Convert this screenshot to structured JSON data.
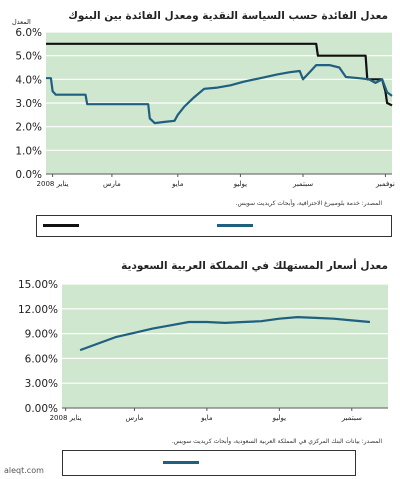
{
  "chart_data": [
    {
      "type": "line",
      "title": "معدل الفائدة حسب السياسة النقدية ومعدل الفائدة بين البنوك",
      "units_label": "المعدل",
      "ylim": [
        0,
        6
      ],
      "yticks": [
        "0.0%",
        "1.0%",
        "2.0%",
        "3.0%",
        "4.0%",
        "5.0%",
        "6.0%"
      ],
      "ytick_values": [
        0,
        1,
        2,
        3,
        4,
        5,
        6
      ],
      "x_range": [
        0,
        10.5
      ],
      "xticks": [
        {
          "x": 0.2,
          "label": "يناير 2008"
        },
        {
          "x": 2.0,
          "label": "مارس"
        },
        {
          "x": 4.0,
          "label": "مايو"
        },
        {
          "x": 5.9,
          "label": "يوليو"
        },
        {
          "x": 7.8,
          "label": "سبتمبر"
        },
        {
          "x": 10.3,
          "label": "نوفمبر"
        }
      ],
      "grid": true,
      "series": [
        {
          "color": "#111111",
          "points": [
            [
              0,
              5.5
            ],
            [
              7.8,
              5.5
            ],
            [
              8.2,
              5.5
            ],
            [
              8.25,
              5.0
            ],
            [
              9.7,
              5.0
            ],
            [
              9.75,
              4.0
            ],
            [
              10.2,
              4.0
            ],
            [
              10.3,
              3.5
            ],
            [
              10.35,
              3.0
            ],
            [
              10.5,
              2.9
            ]
          ]
        },
        {
          "color": "#1f5f7f",
          "points": [
            [
              0,
              4.05
            ],
            [
              0.15,
              4.05
            ],
            [
              0.2,
              3.5
            ],
            [
              0.3,
              3.35
            ],
            [
              0.5,
              3.35
            ],
            [
              1.2,
              3.35
            ],
            [
              1.25,
              2.95
            ],
            [
              2.5,
              2.95
            ],
            [
              3.1,
              2.95
            ],
            [
              3.15,
              2.35
            ],
            [
              3.3,
              2.15
            ],
            [
              3.6,
              2.2
            ],
            [
              3.9,
              2.25
            ],
            [
              4.0,
              2.5
            ],
            [
              4.2,
              2.85
            ],
            [
              4.5,
              3.25
            ],
            [
              4.8,
              3.6
            ],
            [
              5.2,
              3.65
            ],
            [
              5.6,
              3.75
            ],
            [
              6.0,
              3.9
            ],
            [
              6.5,
              4.05
            ],
            [
              7.0,
              4.2
            ],
            [
              7.4,
              4.3
            ],
            [
              7.7,
              4.35
            ],
            [
              7.8,
              4.0
            ],
            [
              8.0,
              4.3
            ],
            [
              8.2,
              4.6
            ],
            [
              8.6,
              4.6
            ],
            [
              8.9,
              4.5
            ],
            [
              9.1,
              4.1
            ],
            [
              9.5,
              4.05
            ],
            [
              9.8,
              4.0
            ],
            [
              10.0,
              3.85
            ],
            [
              10.2,
              4.0
            ],
            [
              10.35,
              3.45
            ],
            [
              10.5,
              3.3
            ]
          ]
        }
      ],
      "source": "المصدر: خدمة بلومبيرغ الاحترافية، وأبحاث كريديت سويس."
    },
    {
      "type": "line",
      "title": "معدل أسعار المستهلك في المملكة العربية السعودية",
      "ylim": [
        0,
        15
      ],
      "yticks": [
        "0.00%",
        "3.00%",
        "6.00%",
        "9.00%",
        "12.00%",
        "15.00%"
      ],
      "ytick_values": [
        0,
        3,
        6,
        9,
        12,
        15
      ],
      "x_range": [
        0,
        9
      ],
      "xticks": [
        {
          "x": 0.1,
          "label": "يناير 2008"
        },
        {
          "x": 2.0,
          "label": "مارس"
        },
        {
          "x": 4.0,
          "label": "مايو"
        },
        {
          "x": 6.0,
          "label": "يوليو"
        },
        {
          "x": 8.0,
          "label": "سبتمبر"
        }
      ],
      "grid": true,
      "series": [
        {
          "color": "#1f5f7f",
          "points": [
            [
              0.5,
              7.0
            ],
            [
              1.0,
              7.8
            ],
            [
              1.5,
              8.6
            ],
            [
              2.0,
              9.1
            ],
            [
              2.5,
              9.6
            ],
            [
              3.0,
              10.0
            ],
            [
              3.5,
              10.4
            ],
            [
              4.0,
              10.4
            ],
            [
              4.5,
              10.3
            ],
            [
              5.0,
              10.4
            ],
            [
              5.5,
              10.5
            ],
            [
              6.0,
              10.8
            ],
            [
              6.5,
              11.0
            ],
            [
              7.0,
              10.9
            ],
            [
              7.5,
              10.8
            ],
            [
              8.0,
              10.6
            ],
            [
              8.5,
              10.4
            ]
          ]
        }
      ],
      "source": "المصدر: بيانات البنك المركزي في المملكة العربية السعودية، وأبحاث كريديت سويس."
    }
  ],
  "watermark": "aleqt.com",
  "colors": {
    "plot_bg": "#cfe6cf",
    "grid": "#ffffff",
    "axis": "#555555"
  }
}
